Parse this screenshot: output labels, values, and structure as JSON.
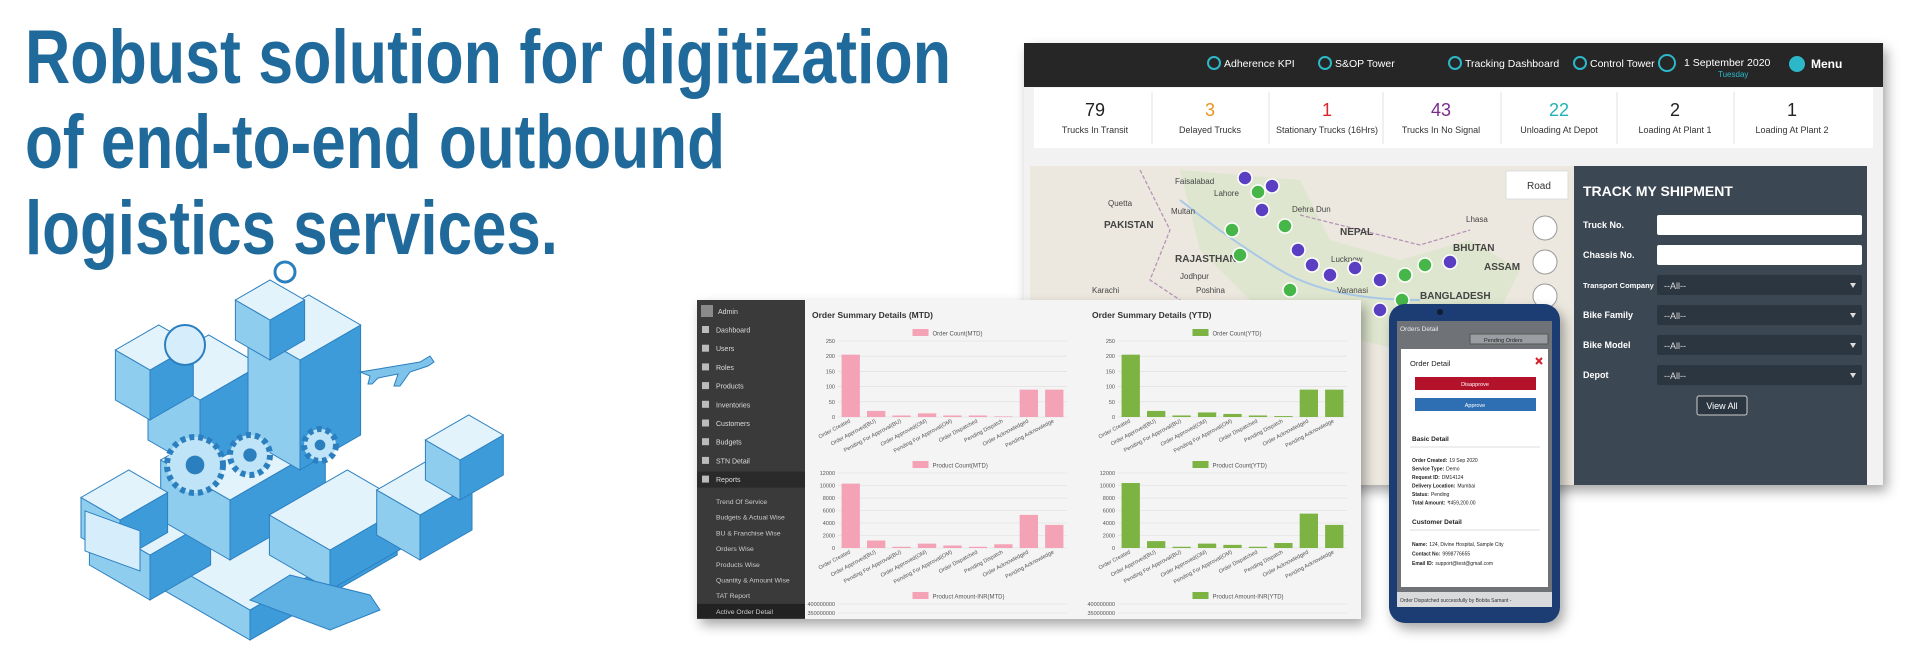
{
  "headline": [
    "Robust solution for digitization",
    "of end-to-end outbound",
    "logistics services."
  ],
  "dashboard": {
    "nav": [
      "Adherence KPI",
      "S&OP Tower",
      "Tracking Dashboard",
      "Control Tower"
    ],
    "date": "1 September 2020",
    "day": "Tuesday",
    "menu": "Menu",
    "kpis": [
      {
        "value": 79,
        "label": "Trucks In Transit",
        "color": "#222222"
      },
      {
        "value": 3,
        "label": "Delayed Trucks",
        "color": "#e8951c"
      },
      {
        "value": 1,
        "label": "Stationary Trucks (16Hrs)",
        "color": "#d9262b"
      },
      {
        "value": 43,
        "label": "Trucks In No Signal",
        "color": "#7b2a8c"
      },
      {
        "value": 22,
        "label": "Unloading At Depot",
        "color": "#1fb3b3"
      },
      {
        "value": 2,
        "label": "Loading At Plant 1",
        "color": "#222222"
      },
      {
        "value": 1,
        "label": "Loading At Plant 2",
        "color": "#222222"
      }
    ],
    "map": {
      "road": "Road",
      "labels": [
        "Quetta",
        "Faisalabad",
        "Lahore",
        "PAKISTAN",
        "Multan",
        "Dehra Dun",
        "NEPAL",
        "Lucknow",
        "RAJASTHAN",
        "Jodhpur",
        "Karachi",
        "Poshina",
        "Varanasi",
        "BHUTAN",
        "ASSAM",
        "BANGLADESH",
        "Lhasa"
      ]
    },
    "track": {
      "title": "TRACK MY SHIPMENT",
      "fields": [
        {
          "label": "Truck No."
        },
        {
          "label": "Chassis No."
        },
        {
          "label": "Transport Company",
          "value": "--All--"
        },
        {
          "label": "Bike Family",
          "value": "--All--"
        },
        {
          "label": "Bike Model",
          "value": "--All--"
        },
        {
          "label": "Depot",
          "value": "--All--"
        }
      ],
      "button": "View All"
    }
  },
  "admin": {
    "user": "Admin",
    "menu": [
      "Dashboard",
      "Users",
      "Roles",
      "Products",
      "Inventories",
      "Customers",
      "Budgets",
      "STN Detail",
      "Reports"
    ],
    "submenu": [
      "Trend Of Service",
      "Budgets & Actual Wise",
      "BU & Franchise Wise",
      "Orders Wise",
      "Products Wise",
      "Quantity & Amount Wise",
      "TAT Report",
      "Active Order Detail"
    ],
    "categories": [
      "Order Created",
      "Order Approved(BU)",
      "Pending For Approval(BU)",
      "Order Approved(OM)",
      "Pending For Approval(OM)",
      "Order Dispatched",
      "Pending Dispatch",
      "Order Acknowledged",
      "Pending Acknowledge"
    ],
    "charts": [
      {
        "title": "Order Summary Details (MTD)",
        "panels": [
          {
            "type": "bar",
            "legend": "Order Count(MTD)",
            "color": "#f4a3b7",
            "ylim": [
              0,
              250
            ],
            "yticks": [
              0,
              50,
              100,
              150,
              200,
              250
            ],
            "values": [
              205,
              20,
              5,
              12,
              5,
              5,
              2,
              90,
              90
            ]
          },
          {
            "type": "bar",
            "legend": "Product Count(MTD)",
            "color": "#f4a3b7",
            "ylim": [
              0,
              12000
            ],
            "yticks": [
              0,
              2000,
              4000,
              6000,
              8000,
              10000,
              12000
            ],
            "values": [
              10300,
              1200,
              200,
              700,
              400,
              200,
              600,
              5300,
              3700
            ]
          },
          {
            "type": "bar",
            "legend": "Product Amount-INR(MTD)",
            "color": "#f4a3b7",
            "ylim": [
              350000000,
              400000000
            ],
            "yticks": [
              350000000,
              400000000
            ]
          }
        ]
      },
      {
        "title": "Order Summary Details (YTD)",
        "panels": [
          {
            "type": "bar",
            "legend": "Order Count(YTD)",
            "color": "#7cb342",
            "ylim": [
              0,
              250
            ],
            "yticks": [
              0,
              50,
              100,
              150,
              200,
              250
            ],
            "values": [
              205,
              20,
              5,
              15,
              10,
              5,
              3,
              90,
              90
            ]
          },
          {
            "type": "bar",
            "legend": "Product Count(YTD)",
            "color": "#7cb342",
            "ylim": [
              0,
              12000
            ],
            "yticks": [
              0,
              2000,
              4000,
              6000,
              8000,
              10000,
              12000
            ],
            "values": [
              10400,
              1100,
              200,
              700,
              500,
              200,
              800,
              5500,
              3700
            ]
          },
          {
            "type": "bar",
            "legend": "Product Amount-INR(YTD)",
            "color": "#7cb342",
            "ylim": [
              350000000,
              400000000
            ],
            "yticks": [
              350000000,
              400000000
            ]
          }
        ]
      }
    ]
  },
  "phone": {
    "header": "Orders Detail",
    "filter": "Pending Orders",
    "modal_title": "Order Detail",
    "disapprove": "Disapprove",
    "approve": "Approve",
    "basic_title": "Basic Detail",
    "basic": [
      {
        "label": "Order Created:",
        "value": "19 Sep 2020"
      },
      {
        "label": "Service Type:",
        "value": "Demo"
      },
      {
        "label": "Request ID:",
        "value": "DM14124"
      },
      {
        "label": "Delivery Location:",
        "value": "Mumbai"
      },
      {
        "label": "Status:",
        "value": "Pending"
      },
      {
        "label": "Total Amount:",
        "value": "₹459,200.00"
      }
    ],
    "customer_title": "Customer Detail",
    "customer": [
      {
        "label": "Name:",
        "value": "124, Divine Hospital, Sample City"
      },
      {
        "label": "Contact No:",
        "value": "9998776655"
      },
      {
        "label": "Email ID:",
        "value": "support@test@gmail.com"
      }
    ],
    "footer": "Order Dispatched successfully by Bobita Samant -"
  }
}
